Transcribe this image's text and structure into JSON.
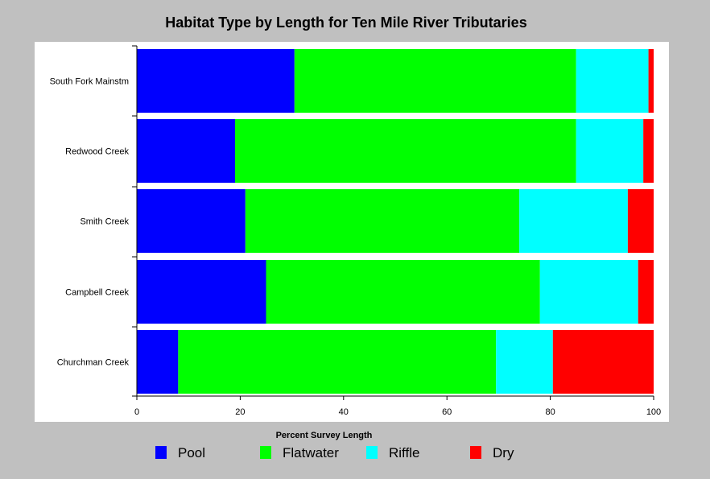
{
  "chart_data": {
    "type": "bar",
    "orientation": "horizontal",
    "stacked": true,
    "title": "Habitat Type by Length for Ten Mile River Tributaries",
    "xlabel": "Percent Survey Length",
    "ylabel": "",
    "xlim": [
      0,
      100
    ],
    "x_ticks": [
      0,
      20,
      40,
      60,
      80,
      100
    ],
    "categories": [
      "South Fork Mainstm",
      "Redwood Creek",
      "Smith Creek",
      "Campbell Creek",
      "Churchman Creek"
    ],
    "series": [
      {
        "name": "Pool",
        "color": "#0000ff",
        "values": [
          30.5,
          19,
          21,
          25,
          8
        ]
      },
      {
        "name": "Flatwater",
        "color": "#00ff00",
        "values": [
          54.5,
          66,
          53,
          53,
          61.5
        ]
      },
      {
        "name": "Riffle",
        "color": "#00ffff",
        "values": [
          14,
          13,
          21,
          19,
          11
        ]
      },
      {
        "name": "Dry",
        "color": "#ff0000",
        "values": [
          1,
          2,
          5,
          3,
          19.5
        ]
      }
    ],
    "legend_position": "bottom",
    "grid": false
  }
}
